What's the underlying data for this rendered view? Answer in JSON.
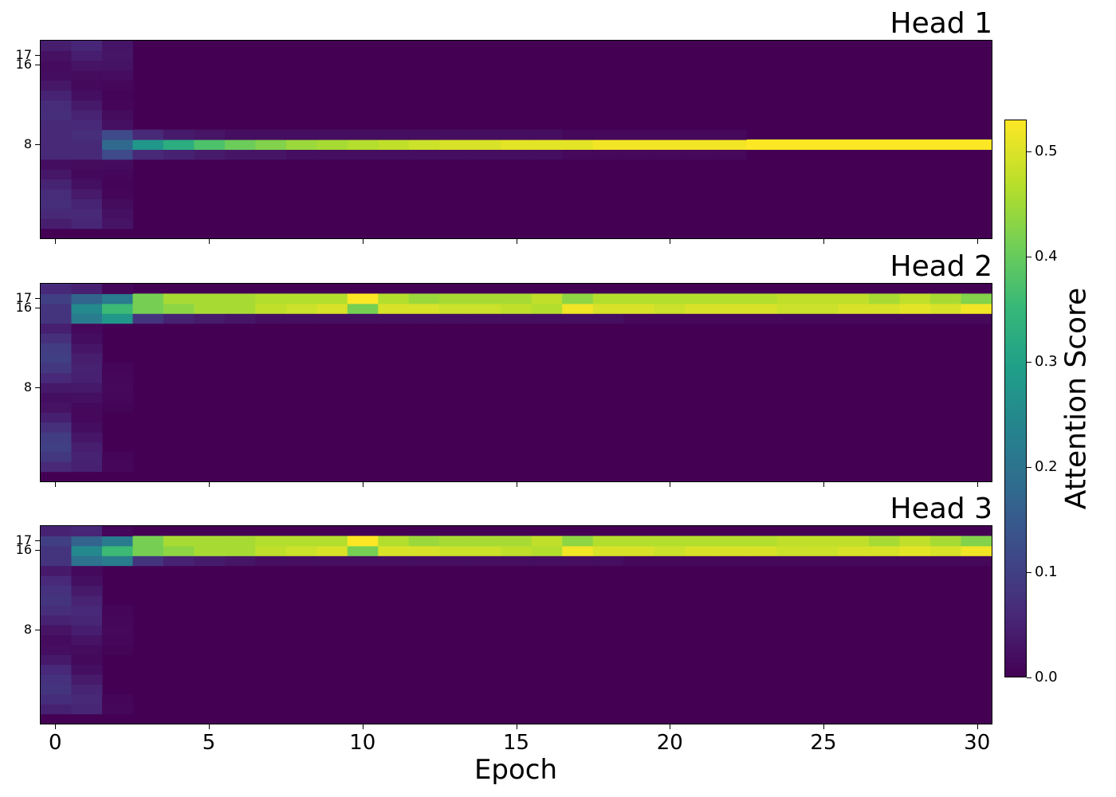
{
  "chart_data": {
    "type": "heatmap",
    "colormap": "viridis",
    "xlabel": "Epoch",
    "x_ticks": [
      0,
      5,
      10,
      15,
      20,
      25,
      30
    ],
    "xlim": [
      -0.5,
      30.5
    ],
    "epochs": 31,
    "rows": 20,
    "y_ticks": [
      8,
      16,
      17
    ],
    "colorbar": {
      "label": "Attention Score",
      "range": [
        0.0,
        0.53
      ],
      "ticks": [
        "0.0",
        "0.1",
        "0.2",
        "0.3",
        "0.4",
        "0.5"
      ]
    },
    "panels": [
      {
        "title": "Head 1",
        "dominant_rows": [
          8
        ],
        "series": [
          {
            "row": 8,
            "values": [
              0.06,
              0.06,
              0.18,
              0.28,
              0.33,
              0.38,
              0.41,
              0.43,
              0.45,
              0.46,
              0.47,
              0.48,
              0.49,
              0.5,
              0.5,
              0.51,
              0.51,
              0.51,
              0.52,
              0.52,
              0.52,
              0.52,
              0.52,
              0.53,
              0.53,
              0.53,
              0.53,
              0.53,
              0.53,
              0.53,
              0.53
            ]
          },
          {
            "row": 9,
            "values": [
              0.06,
              0.07,
              0.12,
              0.06,
              0.04,
              0.03,
              0.02,
              0.02,
              0.02,
              0.02,
              0.02,
              0.02,
              0.02,
              0.02,
              0.02,
              0.02,
              0.02,
              0.01,
              0.01,
              0.01,
              0.01,
              0.01,
              0.01,
              0.0,
              0.0,
              0.0,
              0.0,
              0.0,
              0.0,
              0.0,
              0.0
            ]
          },
          {
            "row": 7,
            "values": [
              0.06,
              0.06,
              0.12,
              0.06,
              0.05,
              0.04,
              0.03,
              0.03,
              0.02,
              0.02,
              0.02,
              0.02,
              0.02,
              0.02,
              0.02,
              0.02,
              0.02,
              0.01,
              0.01,
              0.01,
              0.01,
              0.01,
              0.01,
              0.0,
              0.0,
              0.0,
              0.0,
              0.0,
              0.0,
              0.0,
              0.0
            ]
          }
        ]
      },
      {
        "title": "Head 2",
        "dominant_rows": [
          16,
          17
        ],
        "series": [
          {
            "row": 17,
            "values": [
              0.1,
              0.17,
              0.22,
              0.42,
              0.46,
              0.46,
              0.46,
              0.47,
              0.47,
              0.47,
              0.53,
              0.47,
              0.45,
              0.46,
              0.46,
              0.46,
              0.48,
              0.44,
              0.47,
              0.47,
              0.47,
              0.47,
              0.47,
              0.47,
              0.48,
              0.48,
              0.48,
              0.46,
              0.48,
              0.46,
              0.43
            ]
          },
          {
            "row": 16,
            "values": [
              0.08,
              0.25,
              0.36,
              0.42,
              0.44,
              0.46,
              0.46,
              0.48,
              0.49,
              0.5,
              0.42,
              0.5,
              0.5,
              0.49,
              0.49,
              0.48,
              0.47,
              0.52,
              0.5,
              0.5,
              0.49,
              0.5,
              0.5,
              0.5,
              0.49,
              0.49,
              0.5,
              0.5,
              0.51,
              0.5,
              0.52
            ]
          },
          {
            "row": 15,
            "values": [
              0.08,
              0.22,
              0.28,
              0.08,
              0.05,
              0.04,
              0.03,
              0.02,
              0.02,
              0.02,
              0.02,
              0.02,
              0.02,
              0.02,
              0.02,
              0.02,
              0.02,
              0.02,
              0.02,
              0.01,
              0.01,
              0.01,
              0.01,
              0.01,
              0.01,
              0.01,
              0.01,
              0.01,
              0.01,
              0.01,
              0.01
            ]
          }
        ]
      },
      {
        "title": "Head 3",
        "dominant_rows": [
          16,
          17
        ],
        "series": [
          {
            "row": 17,
            "values": [
              0.1,
              0.17,
              0.22,
              0.42,
              0.46,
              0.46,
              0.46,
              0.47,
              0.47,
              0.47,
              0.53,
              0.47,
              0.45,
              0.46,
              0.46,
              0.46,
              0.48,
              0.44,
              0.47,
              0.47,
              0.47,
              0.47,
              0.47,
              0.47,
              0.48,
              0.48,
              0.48,
              0.46,
              0.48,
              0.46,
              0.43
            ]
          },
          {
            "row": 16,
            "values": [
              0.08,
              0.25,
              0.36,
              0.42,
              0.44,
              0.46,
              0.46,
              0.48,
              0.49,
              0.5,
              0.42,
              0.5,
              0.5,
              0.49,
              0.49,
              0.48,
              0.47,
              0.52,
              0.5,
              0.5,
              0.49,
              0.5,
              0.5,
              0.5,
              0.49,
              0.49,
              0.5,
              0.5,
              0.51,
              0.5,
              0.52
            ]
          },
          {
            "row": 15,
            "values": [
              0.08,
              0.2,
              0.22,
              0.08,
              0.05,
              0.04,
              0.03,
              0.02,
              0.02,
              0.02,
              0.02,
              0.02,
              0.02,
              0.02,
              0.02,
              0.02,
              0.02,
              0.02,
              0.02,
              0.01,
              0.01,
              0.01,
              0.01,
              0.01,
              0.01,
              0.01,
              0.01,
              0.01,
              0.01,
              0.01,
              0.01
            ]
          }
        ]
      }
    ]
  }
}
